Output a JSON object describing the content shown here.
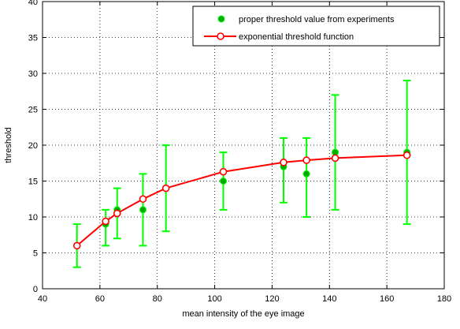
{
  "chart_data": {
    "type": "scatter",
    "xlabel": "mean intensity of the eye image",
    "ylabel": "threshold",
    "xlim": [
      40,
      180
    ],
    "ylim": [
      0,
      40
    ],
    "xticks": [
      "40",
      "60",
      "80",
      "100",
      "120",
      "140",
      "160",
      "180"
    ],
    "yticks": [
      "0",
      "5",
      "10",
      "15",
      "20",
      "25",
      "30",
      "35",
      "40"
    ],
    "grid": true,
    "legend_position": "top-right",
    "series": [
      {
        "name": "proper threshold value from experiments",
        "kind": "markers_with_errorbars",
        "color": "#00ff00",
        "marker_color": "#00aa00",
        "points": [
          {
            "x": 52,
            "y": 6,
            "low": 3,
            "high": 9
          },
          {
            "x": 62,
            "y": 9,
            "low": 6,
            "high": 11
          },
          {
            "x": 66,
            "y": 11,
            "low": 7,
            "high": 14
          },
          {
            "x": 75,
            "y": 11,
            "low": 6,
            "high": 16
          },
          {
            "x": 83,
            "y": 14,
            "low": 8,
            "high": 20
          },
          {
            "x": 103,
            "y": 15,
            "low": 11,
            "high": 19
          },
          {
            "x": 124,
            "y": 17,
            "low": 12,
            "high": 21
          },
          {
            "x": 132,
            "y": 16,
            "low": 10,
            "high": 21
          },
          {
            "x": 142,
            "y": 19,
            "low": 11,
            "high": 27
          },
          {
            "x": 167,
            "y": 19,
            "low": 9,
            "high": 29
          }
        ]
      },
      {
        "name": "exponential threshold function",
        "kind": "line_with_markers",
        "color": "#ff0000",
        "x": [
          52,
          62,
          66,
          75,
          83,
          103,
          124,
          132,
          142,
          167
        ],
        "y": [
          6.0,
          9.4,
          10.5,
          12.5,
          14.0,
          16.3,
          17.6,
          17.9,
          18.2,
          18.6
        ]
      }
    ]
  }
}
